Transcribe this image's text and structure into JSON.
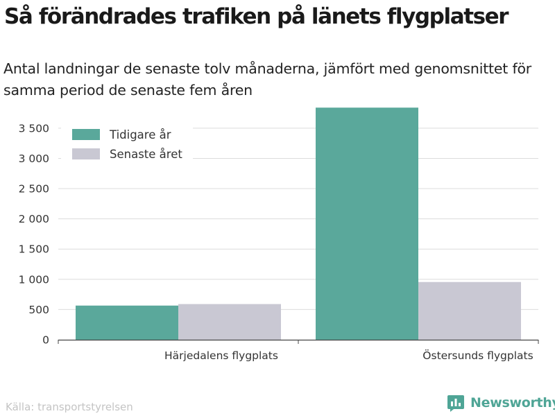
{
  "header": {
    "title": "Så förändrades trafiken på länets flygplatser",
    "subtitle": "Antal landningar de senaste tolv månaderna, jämfört med genomsnittet för samma period de senaste fem åren"
  },
  "footer": {
    "source": "Källa: transportstyrelsen",
    "brand": "Newsworthy",
    "brand_icon": "bar-chart-icon",
    "brand_color": "#4fa596"
  },
  "chart_data": {
    "type": "bar",
    "categories": [
      "Härjedalens flygplats",
      "Östersunds flygplats"
    ],
    "series": [
      {
        "name": "Tidigare år",
        "color": "#5aa89b",
        "values": [
          565,
          3840
        ]
      },
      {
        "name": "Senaste året",
        "color": "#c9c8d3",
        "values": [
          590,
          955
        ]
      }
    ],
    "yticks": [
      0,
      500,
      1000,
      1500,
      2000,
      2500,
      3000,
      3500
    ],
    "ytick_labels": [
      "0",
      "500",
      "1 000",
      "1 500",
      "2 000",
      "2 500",
      "3 000",
      "3 500"
    ],
    "ylim": [
      0,
      3900
    ],
    "grid": true,
    "legend": "top-left"
  }
}
